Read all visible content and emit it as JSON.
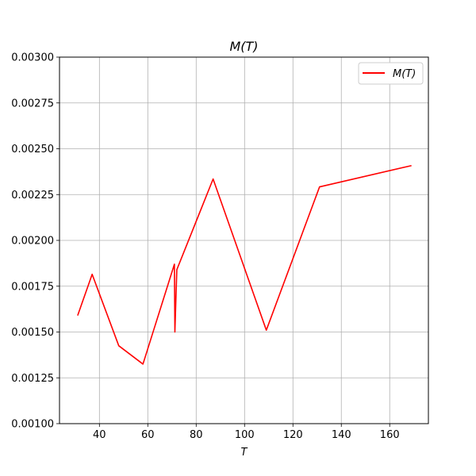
{
  "chart_data": {
    "type": "line",
    "title": "M(T)",
    "xlabel": "T",
    "ylabel": "",
    "xlim": [
      23.5,
      176
    ],
    "ylim": [
      0.001,
      0.003
    ],
    "x_ticks": [
      40,
      60,
      80,
      100,
      120,
      140,
      160
    ],
    "x_tick_labels": [
      "40",
      "60",
      "80",
      "100",
      "120",
      "140",
      "160"
    ],
    "y_ticks": [
      0.001,
      0.00125,
      0.0015,
      0.00175,
      0.002,
      0.00225,
      0.0025,
      0.00275,
      0.003
    ],
    "y_tick_labels": [
      "0.00100",
      "0.00125",
      "0.00150",
      "0.00175",
      "0.00200",
      "0.00225",
      "0.00250",
      "0.00275",
      "0.00300"
    ],
    "grid": true,
    "legend_position": "top-right",
    "series": [
      {
        "name": "M(T)",
        "color": "#ff0000",
        "x": [
          31,
          37,
          48,
          58,
          71,
          71.2,
          72,
          87,
          109,
          131,
          169
        ],
        "y": [
          0.00159,
          0.001815,
          0.001425,
          0.001325,
          0.00187,
          0.0015,
          0.00184,
          0.002335,
          0.00151,
          0.002292,
          0.002408
        ]
      }
    ]
  }
}
